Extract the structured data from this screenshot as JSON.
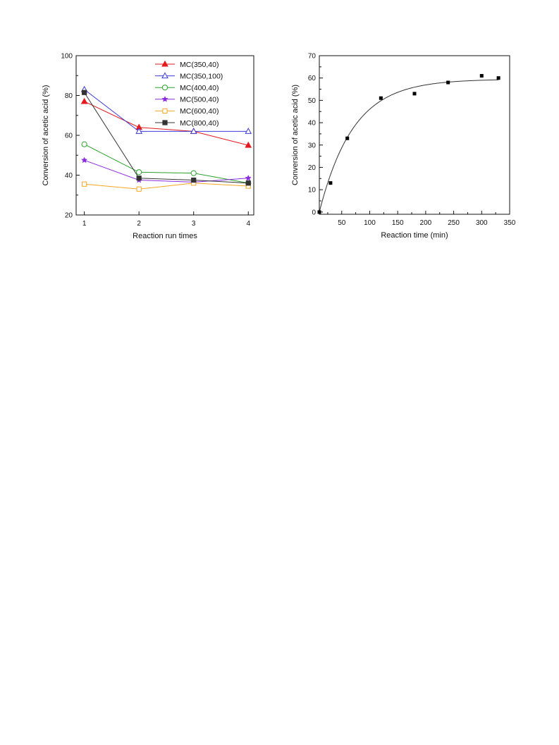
{
  "chart_data": [
    {
      "type": "line",
      "xlabel": "Reaction run times",
      "ylabel": "Conversion of acetic acid (%)",
      "x": [
        1,
        2,
        3,
        4
      ],
      "xticks": [
        "1",
        "2",
        "3",
        "4"
      ],
      "yticks": [
        "20",
        "40",
        "60",
        "80",
        "100"
      ],
      "xlim": [
        0.85,
        4.1
      ],
      "ylim": [
        20,
        100
      ],
      "legend_position": "top-right",
      "series": [
        {
          "name": "MC(350,40)",
          "values": [
            77,
            64,
            62,
            55
          ],
          "color": "#e41a1c",
          "marker": "triangle-filled"
        },
        {
          "name": "MC(350,100)",
          "values": [
            83,
            62,
            62,
            62
          ],
          "color": "#3b3bd9",
          "marker": "triangle-open"
        },
        {
          "name": "MC(400,40)",
          "values": [
            55.5,
            41.5,
            41,
            36
          ],
          "color": "#2ca02c",
          "marker": "circle-open"
        },
        {
          "name": "MC(500,40)",
          "values": [
            47.5,
            37.5,
            36.5,
            38.5
          ],
          "color": "#8a2be2",
          "marker": "star"
        },
        {
          "name": "MC(600,40)",
          "values": [
            35.5,
            33,
            36,
            34.5
          ],
          "color": "#f5a623",
          "marker": "square-open"
        },
        {
          "name": "MC(800,40)",
          "values": [
            81.5,
            38.5,
            37.5,
            36
          ],
          "color": "#333333",
          "marker": "square-filled"
        }
      ]
    },
    {
      "type": "scatter",
      "xlabel": "Reaction time (min)",
      "ylabel": "Conversion of acetic acid (%)",
      "xticks": [
        "50",
        "100",
        "150",
        "200",
        "250",
        "300",
        "350"
      ],
      "yticks": [
        "0",
        "10",
        "20",
        "30",
        "40",
        "50",
        "60",
        "70"
      ],
      "xlim": [
        10,
        350
      ],
      "ylim": [
        -1,
        70
      ],
      "series": [
        {
          "x": [
            10,
            30,
            60,
            120,
            180,
            240,
            300,
            330
          ],
          "values": [
            0,
            13,
            33,
            51,
            53,
            58,
            61,
            60
          ],
          "color": "#000000",
          "marker": "square-filled"
        }
      ],
      "fit_curve": {
        "color": "#333333"
      }
    }
  ]
}
